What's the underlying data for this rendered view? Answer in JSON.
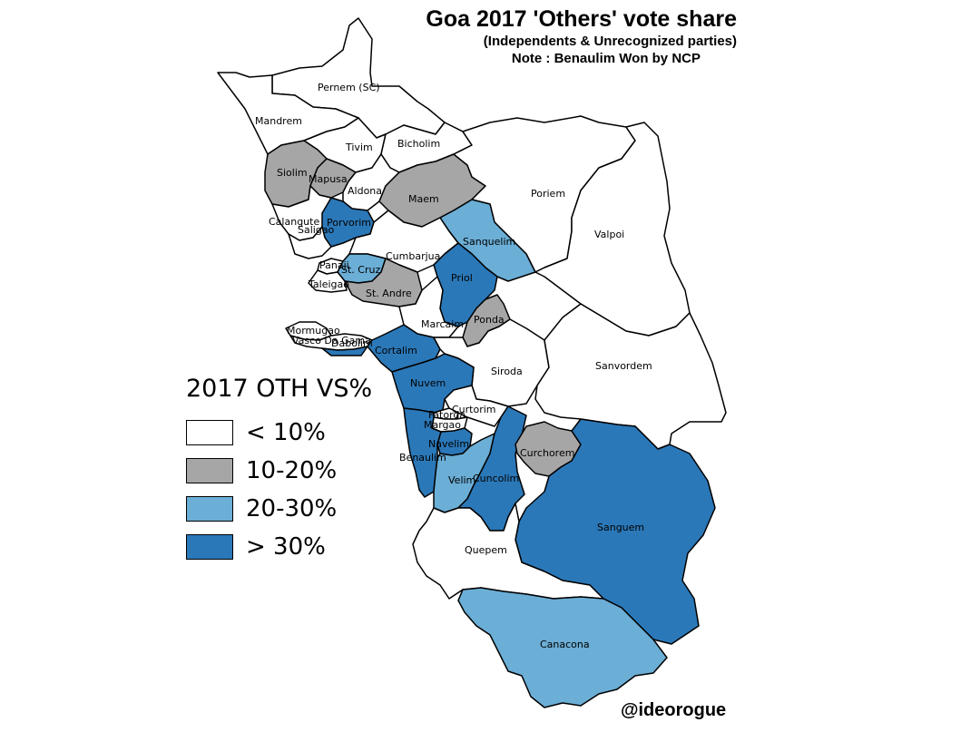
{
  "title": "Goa 2017 'Others' vote share",
  "subtitle": "(Independents & Unrecognized parties)",
  "note": "Note : Benaulim Won by NCP",
  "credit": "@ideorogue",
  "legend": {
    "title": "2017 OTH VS%",
    "items": [
      {
        "label": "< 10%",
        "color": "#ffffff",
        "class": "lt10"
      },
      {
        "label": "10-20%",
        "color": "#a6a6a6",
        "class": "10-20"
      },
      {
        "label": "20-30%",
        "color": "#6baed6",
        "class": "20-30"
      },
      {
        "label": "> 30%",
        "color": "#2b78b8",
        "class": "gt30"
      }
    ]
  },
  "constituencies": [
    {
      "name": "Pernem (SC)",
      "class": "lt10"
    },
    {
      "name": "Mandrem",
      "class": "lt10"
    },
    {
      "name": "Tivim",
      "class": "lt10"
    },
    {
      "name": "Bicholim",
      "class": "lt10"
    },
    {
      "name": "Siolim",
      "class": "10-20"
    },
    {
      "name": "Mapusa",
      "class": "10-20"
    },
    {
      "name": "Aldona",
      "class": "lt10"
    },
    {
      "name": "Maem",
      "class": "10-20"
    },
    {
      "name": "Poriem",
      "class": "lt10"
    },
    {
      "name": "Valpoi",
      "class": "lt10"
    },
    {
      "name": "Calangute",
      "class": "lt10"
    },
    {
      "name": "Porvorim",
      "class": "gt30"
    },
    {
      "name": "Saligao",
      "class": "lt10"
    },
    {
      "name": "Sanquelim",
      "class": "20-30"
    },
    {
      "name": "Cumbarjua",
      "class": "lt10"
    },
    {
      "name": "Panaji",
      "class": "lt10"
    },
    {
      "name": "St. Cruz",
      "class": "20-30"
    },
    {
      "name": "Taleigao",
      "class": "lt10"
    },
    {
      "name": "St. Andre",
      "class": "10-20"
    },
    {
      "name": "Priol",
      "class": "gt30"
    },
    {
      "name": "Marcaim",
      "class": "lt10"
    },
    {
      "name": "Ponda",
      "class": "10-20"
    },
    {
      "name": "Mormugao",
      "class": "lt10"
    },
    {
      "name": "Vasco Da Gama",
      "class": "lt10"
    },
    {
      "name": "Dabolim",
      "class": "gt30"
    },
    {
      "name": "Cortalim",
      "class": "gt30"
    },
    {
      "name": "Siroda",
      "class": "lt10"
    },
    {
      "name": "Sanvordem",
      "class": "lt10"
    },
    {
      "name": "Nuvem",
      "class": "gt30"
    },
    {
      "name": "Curtorim",
      "class": "lt10"
    },
    {
      "name": "Fatorda",
      "class": "lt10"
    },
    {
      "name": "Margao",
      "class": "lt10"
    },
    {
      "name": "Navelim",
      "class": "gt30"
    },
    {
      "name": "Benaulim",
      "class": "gt30"
    },
    {
      "name": "Curchorem",
      "class": "10-20"
    },
    {
      "name": "Velim",
      "class": "20-30"
    },
    {
      "name": "Cuncolim",
      "class": "gt30"
    },
    {
      "name": "Sanguem",
      "class": "gt30"
    },
    {
      "name": "Quepem",
      "class": "lt10"
    },
    {
      "name": "Canacona",
      "class": "20-30"
    }
  ]
}
